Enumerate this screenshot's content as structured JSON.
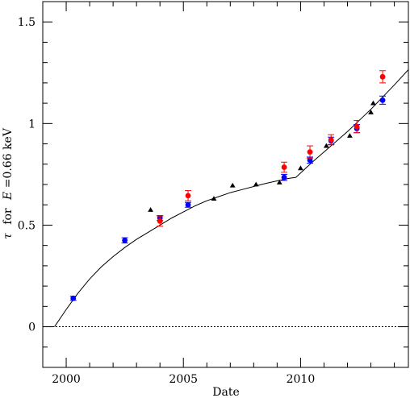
{
  "chart_data": {
    "type": "scatter",
    "title": "",
    "xlabel": "Date",
    "ylabel": {
      "tau": "τ",
      "for": "for",
      "E": "E",
      "rest": "=0.66 keV"
    },
    "xlim": [
      1999.0,
      2014.6
    ],
    "ylim": [
      -0.2,
      1.6
    ],
    "x_ticks": [
      2000,
      2005,
      2010
    ],
    "x_tick_labels": [
      "2000",
      "2005",
      "2010"
    ],
    "y_ticks": [
      0,
      0.5,
      1,
      1.5
    ],
    "y_tick_labels": [
      "0",
      "0.5",
      "1",
      "1.5"
    ],
    "grid": false,
    "reference_line": {
      "y": 0,
      "style": "dotted"
    },
    "series": [
      {
        "marker": "circle",
        "color": "#0000ff",
        "points": [
          {
            "x": 2000.3,
            "y": 0.14,
            "err": 0.01
          },
          {
            "x": 2002.5,
            "y": 0.425,
            "err": 0.013
          },
          {
            "x": 2004.0,
            "y": 0.535,
            "err": 0.012
          },
          {
            "x": 2005.2,
            "y": 0.6,
            "err": 0.012
          },
          {
            "x": 2009.3,
            "y": 0.735,
            "err": 0.015
          },
          {
            "x": 2010.4,
            "y": 0.82,
            "err": 0.015
          },
          {
            "x": 2011.3,
            "y": 0.915,
            "err": 0.018
          },
          {
            "x": 2012.4,
            "y": 0.975,
            "err": 0.02
          },
          {
            "x": 2013.5,
            "y": 1.115,
            "err": 0.02
          }
        ]
      },
      {
        "marker": "circle",
        "color": "#ff0000",
        "points": [
          {
            "x": 2004.0,
            "y": 0.52,
            "err": 0.025
          },
          {
            "x": 2005.2,
            "y": 0.645,
            "err": 0.025
          },
          {
            "x": 2009.3,
            "y": 0.785,
            "err": 0.025
          },
          {
            "x": 2010.4,
            "y": 0.86,
            "err": 0.03
          },
          {
            "x": 2011.3,
            "y": 0.92,
            "err": 0.025
          },
          {
            "x": 2012.4,
            "y": 0.985,
            "err": 0.03
          },
          {
            "x": 2013.5,
            "y": 1.23,
            "err": 0.03
          }
        ]
      },
      {
        "marker": "triangle",
        "color": "#000000",
        "points": [
          {
            "x": 2003.6,
            "y": 0.575
          },
          {
            "x": 2006.3,
            "y": 0.63
          },
          {
            "x": 2007.1,
            "y": 0.695
          },
          {
            "x": 2008.1,
            "y": 0.7
          },
          {
            "x": 2009.1,
            "y": 0.71
          },
          {
            "x": 2010.0,
            "y": 0.78
          },
          {
            "x": 2011.1,
            "y": 0.89
          },
          {
            "x": 2012.1,
            "y": 0.94
          },
          {
            "x": 2013.0,
            "y": 1.055
          },
          {
            "x": 2013.1,
            "y": 1.1
          }
        ]
      }
    ],
    "fit_curve": [
      [
        1999.5,
        0.0
      ],
      [
        2000.0,
        0.085
      ],
      [
        2000.5,
        0.165
      ],
      [
        2001.0,
        0.235
      ],
      [
        2001.5,
        0.295
      ],
      [
        2002.0,
        0.345
      ],
      [
        2002.5,
        0.39
      ],
      [
        2003.0,
        0.43
      ],
      [
        2003.5,
        0.465
      ],
      [
        2004.0,
        0.5
      ],
      [
        2004.5,
        0.535
      ],
      [
        2005.0,
        0.565
      ],
      [
        2005.5,
        0.595
      ],
      [
        2006.0,
        0.62
      ],
      [
        2006.5,
        0.64
      ],
      [
        2007.0,
        0.66
      ],
      [
        2007.5,
        0.675
      ],
      [
        2008.0,
        0.69
      ],
      [
        2008.5,
        0.705
      ],
      [
        2009.0,
        0.718
      ],
      [
        2009.5,
        0.73
      ],
      [
        2009.8,
        0.735
      ],
      [
        2010.5,
        0.81
      ],
      [
        2011.0,
        0.86
      ],
      [
        2011.5,
        0.91
      ],
      [
        2012.0,
        0.96
      ],
      [
        2012.5,
        1.015
      ],
      [
        2013.0,
        1.07
      ],
      [
        2013.5,
        1.13
      ],
      [
        2014.0,
        1.19
      ],
      [
        2014.6,
        1.265
      ]
    ]
  }
}
